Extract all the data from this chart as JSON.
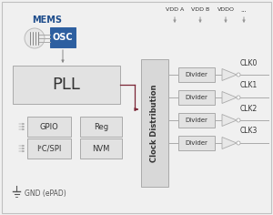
{
  "bg_color": "#f0f0f0",
  "mems_label": "MEMS",
  "osc_label": "OSC",
  "pll_label": "PLL",
  "clk_dist_label": "Clock Distribution",
  "gpio_label": "GPIO",
  "reg_label": "Reg",
  "i2c_label": "I²C/SPI",
  "nvm_label": "NVM",
  "gnd_label": "GND (ePAD)",
  "divider_labels": [
    "Divider",
    "Divider",
    "Divider",
    "Divider"
  ],
  "clk_labels": [
    "CLK0",
    "CLK1",
    "CLK2",
    "CLK3"
  ],
  "vdd_labels": [
    "VDD A",
    "VDD B",
    "VDDO"
  ],
  "vddo_dots": "...",
  "osc_color": "#2d5fa0",
  "osc_text_color": "#ffffff",
  "pll_box_color": "#e2e2e2",
  "clk_dist_color": "#d8d8d8",
  "divider_color": "#e2e2e2",
  "gpio_box_color": "#e2e2e2",
  "arrow_color": "#7a2535",
  "gray_color": "#999999",
  "mems_text_color": "#1e4d8c",
  "text_color": "#333333",
  "light_gray": "#cccccc"
}
